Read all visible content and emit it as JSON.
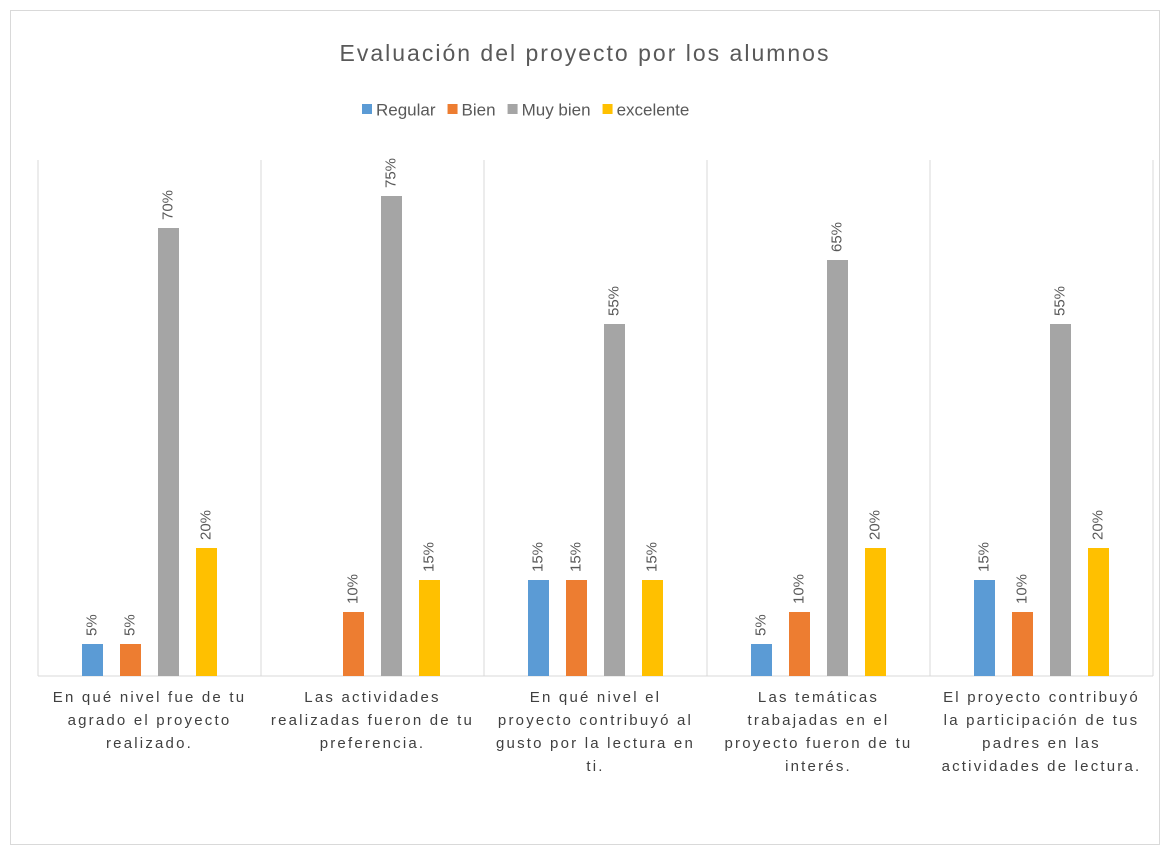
{
  "chart_data": {
    "type": "bar",
    "title": "Evaluación del proyecto por los alumnos",
    "categories": [
      "En qué nivel fue de tu agrado el proyecto realizado.",
      "Las actividades realizadas fueron de tu preferencia.",
      "En qué nivel el proyecto contribuyó al gusto por la lectura en ti.",
      "Las temáticas trabajadas en el proyecto fueron de tu interés.",
      "El proyecto contribuyó la participación de tus padres en las actividades de lectura."
    ],
    "series": [
      {
        "name": "Regular",
        "color": "#5b9bd5",
        "values": [
          5,
          null,
          15,
          5,
          15
        ],
        "value_labels": [
          "5%",
          null,
          "15%",
          "5%",
          "15%"
        ]
      },
      {
        "name": "Bien",
        "color": "#ed7d31",
        "values": [
          5,
          10,
          15,
          10,
          10
        ],
        "value_labels": [
          "5%",
          "10%",
          "15%",
          "10%",
          "10%"
        ]
      },
      {
        "name": "Muy bien",
        "color": "#a5a5a5",
        "values": [
          70,
          75,
          55,
          65,
          55
        ],
        "value_labels": [
          "70%",
          "75%",
          "55%",
          "65%",
          "55%"
        ]
      },
      {
        "name": "excelente",
        "color": "#ffc000",
        "values": [
          20,
          15,
          15,
          20,
          20
        ],
        "value_labels": [
          "20%",
          "15%",
          "15%",
          "20%",
          "20%"
        ]
      }
    ],
    "legend": "top"
  }
}
